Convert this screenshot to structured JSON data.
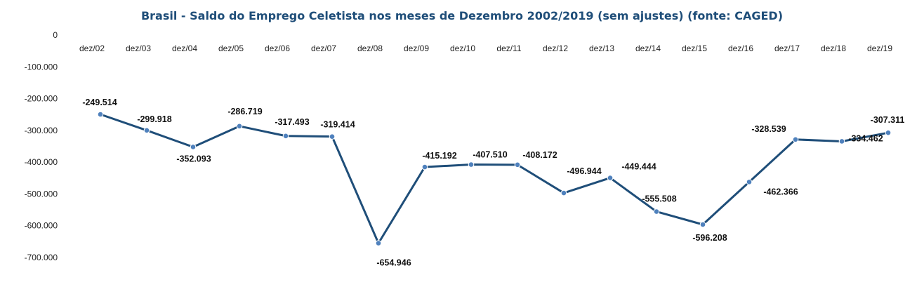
{
  "chart_data": {
    "type": "line",
    "title": "Brasil - Saldo do Emprego Celetista nos meses de Dezembro 2002/2019 (sem ajustes) (fonte: CAGED)",
    "xlabel": "",
    "ylabel": "",
    "ylim": [
      -700000,
      0
    ],
    "yticks": [
      0,
      -100000,
      -200000,
      -300000,
      -400000,
      -500000,
      -600000,
      -700000
    ],
    "ytick_labels": [
      "0",
      "-100.000",
      "-200.000",
      "-300.000",
      "-400.000",
      "-500.000",
      "-600.000",
      "-700.000"
    ],
    "grid": false,
    "legend": "none",
    "categories": [
      "dez/02",
      "dez/03",
      "dez/04",
      "dez/05",
      "dez/06",
      "dez/07",
      "dez/08",
      "dez/09",
      "dez/10",
      "dez/11",
      "dez/12",
      "dez/13",
      "dez/14",
      "dez/15",
      "dez/16",
      "dez/17",
      "dez/18",
      "dez/19"
    ],
    "values": [
      -249514,
      -299918,
      -352093,
      -286719,
      -317493,
      -319414,
      -654946,
      -415192,
      -407510,
      -408172,
      -496944,
      -449444,
      -555508,
      -596208,
      -462366,
      -328539,
      -334462,
      -307311
    ],
    "data_labels": [
      "-249.514",
      "-299.918",
      "-352.093",
      "-286.719",
      "-317.493",
      "-319.414",
      "-654.946",
      "-415.192",
      "-407.510",
      "-408.172",
      "-496.944",
      "-449.444",
      "-555.508",
      "-596.208",
      "-462.366",
      "-328.539",
      "-334.462",
      "-307.311"
    ],
    "colors": {
      "line": "#1F4E79",
      "marker": "#4F81BD",
      "title": "#1F4E79"
    }
  }
}
